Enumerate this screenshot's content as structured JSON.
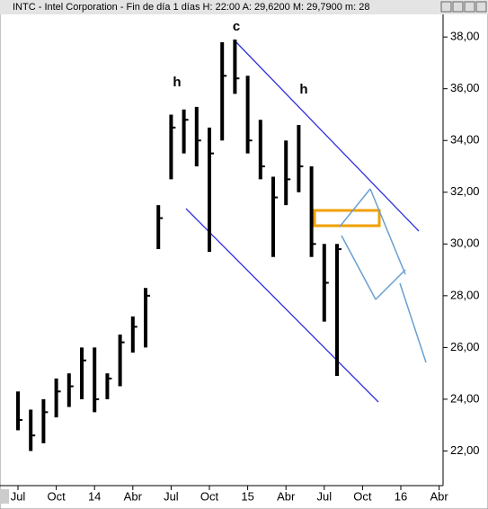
{
  "chart_data": {
    "type": "ohlc",
    "title": "INTC - Intel Corporation  - Fin de día 1 días  H: 22:00  A: 29,6200  M: 29,7900  m: 28",
    "categories": [
      "Jul",
      null,
      null,
      "Oct",
      null,
      null,
      "14",
      null,
      null,
      "Abr",
      null,
      null,
      "Jul",
      null,
      null,
      "Oct",
      null,
      null,
      "15",
      null,
      null,
      "Abr",
      null,
      null,
      "Jul",
      null,
      null,
      "Oct",
      null,
      null,
      "16",
      null,
      null,
      "Abr"
    ],
    "series": [
      {
        "name": "high",
        "color": "#000000",
        "values": [
          24.3,
          23.6,
          24.0,
          24.8,
          25.0,
          26.0,
          26.0,
          25.0,
          26.5,
          27.2,
          28.3,
          31.5,
          35.0,
          35.2,
          35.3,
          34.5,
          37.8,
          37.9,
          36.5,
          34.8,
          32.6,
          34.0,
          34.6,
          33.0,
          30.0,
          30.0,
          null,
          null,
          null,
          null,
          null,
          null,
          null,
          null
        ]
      },
      {
        "name": "low",
        "color": "#000000",
        "values": [
          22.8,
          22.0,
          22.3,
          23.3,
          23.7,
          24.0,
          23.5,
          24.0,
          24.5,
          25.8,
          26.0,
          29.8,
          32.5,
          33.5,
          33.0,
          29.7,
          34.0,
          35.8,
          33.5,
          32.5,
          29.5,
          31.5,
          32.0,
          29.5,
          27.0,
          24.9,
          null,
          null,
          null,
          null,
          null,
          null,
          null,
          null
        ]
      },
      {
        "name": "close",
        "color": "#000000",
        "values": [
          23.2,
          22.6,
          23.5,
          24.3,
          24.5,
          25.5,
          24.0,
          24.8,
          26.2,
          26.8,
          28.0,
          31.0,
          34.5,
          34.8,
          34.0,
          33.5,
          36.5,
          36.4,
          34.0,
          33.0,
          31.8,
          32.5,
          33.0,
          30.0,
          28.5,
          29.8,
          null,
          null,
          null,
          null,
          null,
          null,
          null,
          null
        ]
      }
    ],
    "annotations": [
      "c",
      "h",
      "h"
    ],
    "ylim": [
      20.8,
      38.7
    ],
    "yticks": [
      {
        "value": 22,
        "label": "22,00"
      },
      {
        "value": 24,
        "label": "24,00"
      },
      {
        "value": 26,
        "label": "26,00"
      },
      {
        "value": 28,
        "label": "28,00"
      },
      {
        "value": 30,
        "label": "30,00"
      },
      {
        "value": 32,
        "label": "32,00"
      },
      {
        "value": 34,
        "label": "34,00"
      },
      {
        "value": 36,
        "label": "36,00"
      },
      {
        "value": 38,
        "label": "38,00"
      }
    ],
    "grid": false
  }
}
